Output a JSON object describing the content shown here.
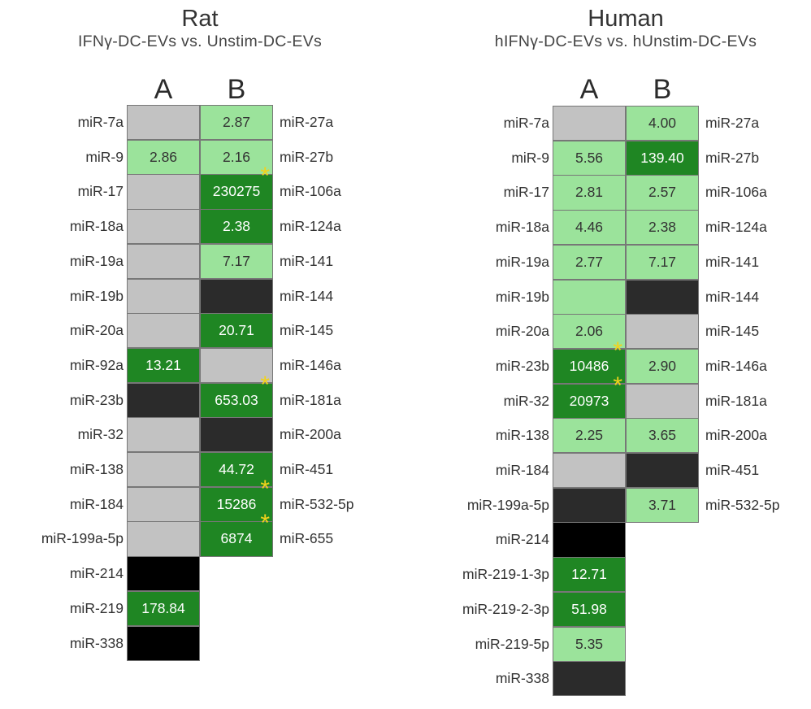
{
  "colors": {
    "light": "#9be39b",
    "dark": "#1f8623",
    "grey": "#c2c2c2",
    "darkgrey": "#2b2b2b",
    "black": "#000000",
    "star": "#f2d21b"
  },
  "rat": {
    "title": "Rat",
    "subtitle": "IFNγ-DC-EVs vs. Unstim-DC-EVs",
    "col_a": "A",
    "col_b": "B",
    "a_rows": [
      {
        "label": "miR-7a",
        "value": "",
        "color": "grey",
        "star": false
      },
      {
        "label": "miR-9",
        "value": "2.86",
        "color": "light",
        "star": false
      },
      {
        "label": "miR-17",
        "value": "",
        "color": "grey",
        "star": false
      },
      {
        "label": "miR-18a",
        "value": "",
        "color": "grey",
        "star": false
      },
      {
        "label": "miR-19a",
        "value": "",
        "color": "grey",
        "star": false
      },
      {
        "label": "miR-19b",
        "value": "",
        "color": "grey",
        "star": false
      },
      {
        "label": "miR-20a",
        "value": "",
        "color": "grey",
        "star": false
      },
      {
        "label": "miR-92a",
        "value": "13.21",
        "color": "dark",
        "star": false
      },
      {
        "label": "miR-23b",
        "value": "",
        "color": "darkgrey",
        "star": false
      },
      {
        "label": "miR-32",
        "value": "",
        "color": "grey",
        "star": false
      },
      {
        "label": "miR-138",
        "value": "",
        "color": "grey",
        "star": false
      },
      {
        "label": "miR-184",
        "value": "",
        "color": "grey",
        "star": false
      },
      {
        "label": "miR-199a-5p",
        "value": "",
        "color": "grey",
        "star": false
      },
      {
        "label": "miR-214",
        "value": "",
        "color": "black",
        "star": false
      },
      {
        "label": "miR-219",
        "value": "178.84",
        "color": "dark",
        "star": false
      },
      {
        "label": "miR-338",
        "value": "",
        "color": "black",
        "star": false
      }
    ],
    "b_rows": [
      {
        "label": "miR-27a",
        "value": "2.87",
        "color": "light",
        "star": false
      },
      {
        "label": "miR-27b",
        "value": "2.16",
        "color": "light",
        "star": false
      },
      {
        "label": "miR-106a",
        "value": "230275",
        "color": "dark",
        "star": true
      },
      {
        "label": "miR-124a",
        "value": "2.38",
        "color": "dark",
        "star": false
      },
      {
        "label": "miR-141",
        "value": "7.17",
        "color": "light",
        "star": false
      },
      {
        "label": "miR-144",
        "value": "",
        "color": "darkgrey",
        "star": false
      },
      {
        "label": "miR-145",
        "value": "20.71",
        "color": "dark",
        "star": false
      },
      {
        "label": "miR-146a",
        "value": "",
        "color": "grey",
        "star": false
      },
      {
        "label": "miR-181a",
        "value": "653.03",
        "color": "dark",
        "star": true
      },
      {
        "label": "miR-200a",
        "value": "",
        "color": "darkgrey",
        "star": false
      },
      {
        "label": "miR-451",
        "value": "44.72",
        "color": "dark",
        "star": false
      },
      {
        "label": "miR-532-5p",
        "value": "15286",
        "color": "dark",
        "star": true
      },
      {
        "label": "miR-655",
        "value": "6874",
        "color": "dark",
        "star": true
      }
    ]
  },
  "human": {
    "title": "Human",
    "subtitle": "hIFNγ-DC-EVs vs. hUnstim-DC-EVs",
    "col_a": "A",
    "col_b": "B",
    "a_rows": [
      {
        "label": "miR-7a",
        "value": "",
        "color": "grey",
        "star": false
      },
      {
        "label": "miR-9",
        "value": "5.56",
        "color": "light",
        "star": false
      },
      {
        "label": "miR-17",
        "value": "2.81",
        "color": "light",
        "star": false
      },
      {
        "label": "miR-18a",
        "value": "4.46",
        "color": "light",
        "star": false
      },
      {
        "label": "miR-19a",
        "value": "2.77",
        "color": "light",
        "star": false
      },
      {
        "label": "miR-19b",
        "value": "",
        "color": "light",
        "star": false
      },
      {
        "label": "miR-20a",
        "value": "2.06",
        "color": "light",
        "star": false
      },
      {
        "label": "miR-23b",
        "value": "10486",
        "color": "dark",
        "star": true
      },
      {
        "label": "miR-32",
        "value": "20973",
        "color": "dark",
        "star": true
      },
      {
        "label": "miR-138",
        "value": "2.25",
        "color": "light",
        "star": false
      },
      {
        "label": "miR-184",
        "value": "",
        "color": "grey",
        "star": false
      },
      {
        "label": "miR-199a-5p",
        "value": "",
        "color": "darkgrey",
        "star": false
      },
      {
        "label": "miR-214",
        "value": "",
        "color": "black",
        "star": false
      },
      {
        "label": "miR-219-1-3p",
        "value": "12.71",
        "color": "dark",
        "star": false
      },
      {
        "label": "miR-219-2-3p",
        "value": "51.98",
        "color": "dark",
        "star": false
      },
      {
        "label": "miR-219-5p",
        "value": "5.35",
        "color": "light",
        "star": false
      },
      {
        "label": "miR-338",
        "value": "",
        "color": "darkgrey",
        "star": false
      }
    ],
    "b_rows": [
      {
        "label": "miR-27a",
        "value": "4.00",
        "color": "light",
        "star": false
      },
      {
        "label": "miR-27b",
        "value": "139.40",
        "color": "dark",
        "star": false
      },
      {
        "label": "miR-106a",
        "value": "2.57",
        "color": "light",
        "star": false
      },
      {
        "label": "miR-124a",
        "value": "2.38",
        "color": "light",
        "star": false
      },
      {
        "label": "miR-141",
        "value": "7.17",
        "color": "light",
        "star": false
      },
      {
        "label": "miR-144",
        "value": "",
        "color": "darkgrey",
        "star": false
      },
      {
        "label": "miR-145",
        "value": "",
        "color": "grey",
        "star": false
      },
      {
        "label": "miR-146a",
        "value": "2.90",
        "color": "light",
        "star": false
      },
      {
        "label": "miR-181a",
        "value": "",
        "color": "grey",
        "star": false
      },
      {
        "label": "miR-200a",
        "value": "3.65",
        "color": "light",
        "star": false
      },
      {
        "label": "miR-451",
        "value": "",
        "color": "darkgrey",
        "star": false
      },
      {
        "label": "miR-532-5p",
        "value": "3.71",
        "color": "light",
        "star": false
      }
    ]
  },
  "chart_data": [
    {
      "type": "heatmap",
      "title": "Rat",
      "subtitle": "IFNγ-DC-EVs vs. Unstim-DC-EVs",
      "columns": [
        "A",
        "B"
      ],
      "series": [
        {
          "name": "A",
          "labels": [
            "miR-7a",
            "miR-9",
            "miR-17",
            "miR-18a",
            "miR-19a",
            "miR-19b",
            "miR-20a",
            "miR-92a",
            "miR-23b",
            "miR-32",
            "miR-138",
            "miR-184",
            "miR-199a-5p",
            "miR-214",
            "miR-219",
            "miR-338"
          ],
          "values": [
            null,
            2.86,
            null,
            null,
            null,
            null,
            null,
            13.21,
            null,
            null,
            null,
            null,
            null,
            null,
            178.84,
            null
          ]
        },
        {
          "name": "B",
          "labels": [
            "miR-27a",
            "miR-27b",
            "miR-106a",
            "miR-124a",
            "miR-141",
            "miR-144",
            "miR-145",
            "miR-146a",
            "miR-181a",
            "miR-200a",
            "miR-451",
            "miR-532-5p",
            "miR-655"
          ],
          "values": [
            2.87,
            2.16,
            230275,
            2.38,
            7.17,
            null,
            20.71,
            null,
            653.03,
            null,
            44.72,
            15286,
            6874
          ]
        }
      ]
    },
    {
      "type": "heatmap",
      "title": "Human",
      "subtitle": "hIFNγ-DC-EVs vs. hUnstim-DC-EVs",
      "columns": [
        "A",
        "B"
      ],
      "series": [
        {
          "name": "A",
          "labels": [
            "miR-7a",
            "miR-9",
            "miR-17",
            "miR-18a",
            "miR-19a",
            "miR-19b",
            "miR-20a",
            "miR-23b",
            "miR-32",
            "miR-138",
            "miR-184",
            "miR-199a-5p",
            "miR-214",
            "miR-219-1-3p",
            "miR-219-2-3p",
            "miR-219-5p",
            "miR-338"
          ],
          "values": [
            null,
            5.56,
            2.81,
            4.46,
            2.77,
            null,
            2.06,
            10486,
            20973,
            2.25,
            null,
            null,
            null,
            12.71,
            51.98,
            5.35,
            null
          ]
        },
        {
          "name": "B",
          "labels": [
            "miR-27a",
            "miR-27b",
            "miR-106a",
            "miR-124a",
            "miR-141",
            "miR-144",
            "miR-145",
            "miR-146a",
            "miR-181a",
            "miR-200a",
            "miR-451",
            "miR-532-5p"
          ],
          "values": [
            4.0,
            139.4,
            2.57,
            2.38,
            7.17,
            null,
            null,
            2.9,
            null,
            3.65,
            null,
            3.71
          ]
        }
      ]
    }
  ]
}
